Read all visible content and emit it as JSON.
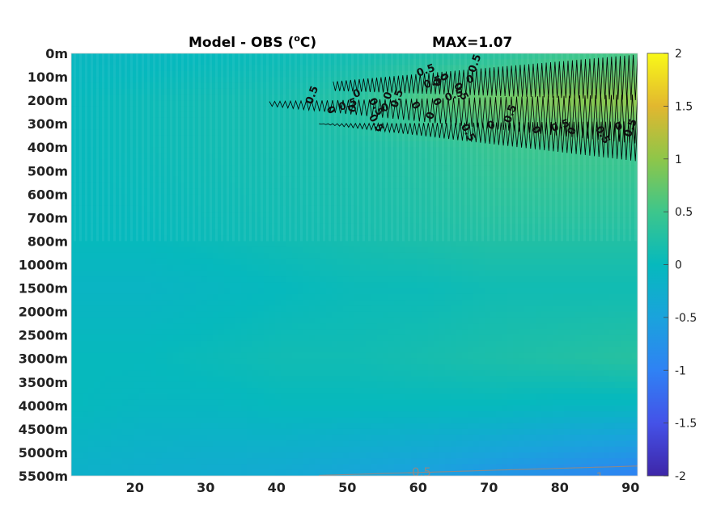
{
  "chart_data": {
    "type": "heatmap",
    "title_left": "Model - OBS (",
    "title_deg": "o",
    "title_right": "C)",
    "title_max": "MAX=1.07",
    "y_tick_labels": [
      "0m",
      "100m",
      "200m",
      "300m",
      "400m",
      "500m",
      "600m",
      "700m",
      "800m",
      "1000m",
      "1500m",
      "2000m",
      "2500m",
      "3000m",
      "3500m",
      "4000m",
      "4500m",
      "5000m",
      "5500m"
    ],
    "x_tick_labels": [
      "20",
      "30",
      "40",
      "50",
      "60",
      "70",
      "80",
      "90"
    ],
    "x_ticks": [
      20,
      30,
      40,
      50,
      60,
      70,
      80,
      90
    ],
    "xlim": [
      11,
      91
    ],
    "colorbar": {
      "range": [
        -2,
        2
      ],
      "tick_values": [
        2,
        1.5,
        1,
        0.5,
        0,
        -0.5,
        -1,
        -1.5,
        -2
      ],
      "tick_labels": [
        "2",
        "1.5",
        "1",
        "0.5",
        "0",
        "-0.5",
        "-1",
        "-1.5",
        "-2"
      ],
      "colormap": "parula"
    },
    "contour_labels": {
      "minus_half": "-0.5",
      "minus_one": "-1",
      "half_labels": [
        "0.5",
        "0"
      ]
    },
    "field_description_rows": [
      {
        "depth": "0m",
        "values": [
          -0.05,
          -0.05,
          0.0,
          0.05,
          0.1,
          0.2,
          0.3,
          0.45,
          0.55
        ]
      },
      {
        "depth": "200m",
        "values": [
          0.0,
          0.05,
          0.1,
          0.15,
          0.3,
          0.6,
          0.8,
          0.95,
          1.0
        ]
      },
      {
        "depth": "400m",
        "values": [
          0.0,
          0.05,
          0.1,
          0.15,
          0.2,
          0.3,
          0.45,
          0.5,
          0.5
        ]
      },
      {
        "depth": "800m",
        "values": [
          0.0,
          0.0,
          0.05,
          0.1,
          0.15,
          0.2,
          0.25,
          0.25,
          0.25
        ]
      },
      {
        "depth": "1500m",
        "values": [
          -0.1,
          -0.1,
          -0.05,
          0.0,
          0.05,
          0.05,
          0.1,
          0.1,
          0.1
        ]
      },
      {
        "depth": "3000m",
        "values": [
          0.0,
          0.0,
          0.05,
          0.1,
          0.1,
          0.15,
          0.2,
          0.25,
          0.3
        ]
      },
      {
        "depth": "4000m",
        "values": [
          0.0,
          -0.05,
          -0.05,
          0.0,
          0.0,
          0.0,
          0.0,
          -0.05,
          -0.05
        ]
      },
      {
        "depth": "5500m",
        "values": [
          -0.2,
          -0.25,
          -0.3,
          -0.35,
          -0.45,
          -0.55,
          -0.7,
          -0.85,
          -1.0
        ]
      }
    ]
  }
}
